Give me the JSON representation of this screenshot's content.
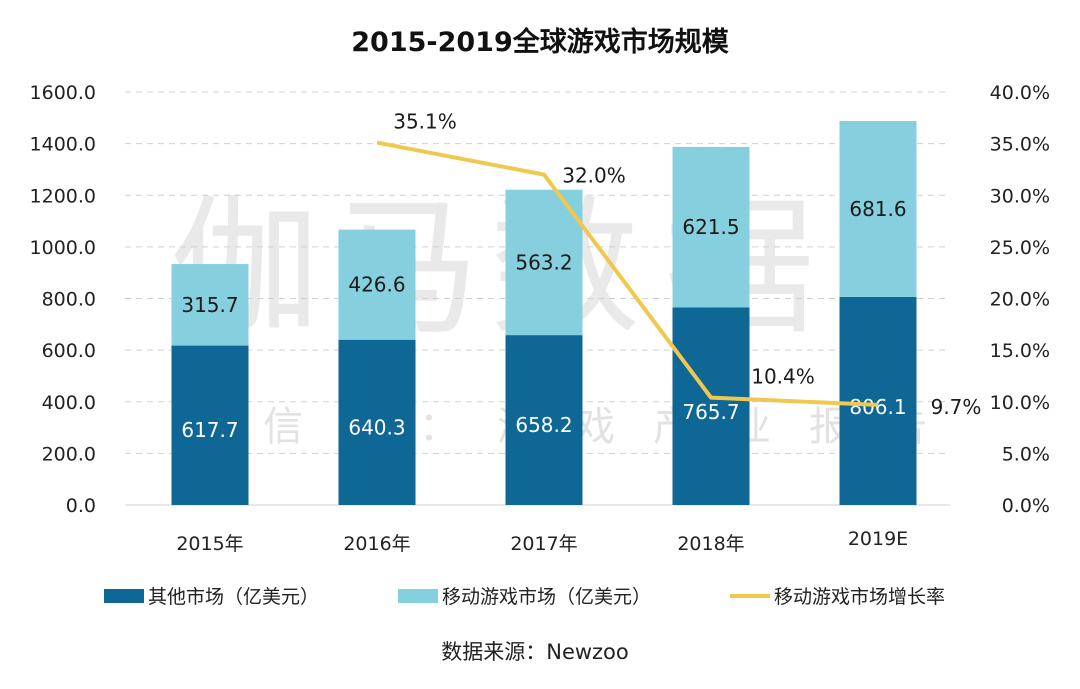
{
  "chart_data": {
    "type": "bar",
    "subtype": "stacked-bar-with-line",
    "title": "2015-2019全球游戏市场规模",
    "categories": [
      "2015年",
      "2016年",
      "2017年",
      "2018年",
      "2019E"
    ],
    "series": [
      {
        "name": "其他市场（亿美元）",
        "kind": "bar",
        "axis": "left",
        "color": "#0e6795",
        "values": [
          617.7,
          640.3,
          658.2,
          765.7,
          806.1
        ],
        "labels": [
          "617.7",
          "640.3",
          "658.2",
          "765.7",
          "806.1"
        ]
      },
      {
        "name": "移动游戏市场（亿美元）",
        "kind": "bar",
        "axis": "left",
        "color": "#86cfdf",
        "values": [
          315.7,
          426.6,
          563.2,
          621.5,
          681.6
        ],
        "labels": [
          "315.7",
          "426.6",
          "563.2",
          "621.5",
          "681.6"
        ]
      },
      {
        "name": "移动游戏市场增长率",
        "kind": "line",
        "axis": "right",
        "color": "#f0c850",
        "values": [
          null,
          35.1,
          32.0,
          10.4,
          9.7
        ],
        "labels": [
          null,
          "35.1%",
          "32.0%",
          "10.4%",
          "9.7%"
        ]
      }
    ],
    "y_left": {
      "min": 0,
      "max": 1600,
      "step": 200,
      "ticks": [
        "0.0",
        "200.0",
        "400.0",
        "600.0",
        "800.0",
        "1000.0",
        "1200.0",
        "1400.0",
        "1600.0"
      ]
    },
    "y_right": {
      "min": 0,
      "max": 40,
      "step": 5,
      "ticks": [
        "0.0%",
        "5.0%",
        "10.0%",
        "15.0%",
        "20.0%",
        "25.0%",
        "30.0%",
        "35.0%",
        "40.0%"
      ]
    },
    "xlabel": "",
    "ylabel": "",
    "grid": true,
    "legend_position": "bottom",
    "source": "数据来源：Newzoo",
    "watermark": {
      "main": "伽马数据",
      "sub": "微信号：游戏产业报告"
    }
  }
}
